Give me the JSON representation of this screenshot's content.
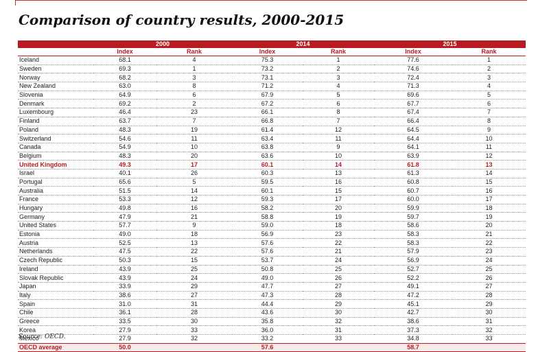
{
  "title": "Comparison of country results, 2000-2015",
  "years": [
    "2000",
    "2014",
    "2015"
  ],
  "col_index": "Index",
  "col_rank": "Rank",
  "highlight_country": "United Kingdom",
  "rows": [
    [
      "Iceland",
      "68.1",
      "4",
      "75.3",
      "1",
      "77.6",
      "1"
    ],
    [
      "Sweden",
      "69.3",
      "1",
      "73.2",
      "2",
      "74.6",
      "2"
    ],
    [
      "Norway",
      "68.2",
      "3",
      "73.1",
      "3",
      "72.4",
      "3"
    ],
    [
      "New Zealand",
      "63.0",
      "8",
      "71.2",
      "4",
      "71.3",
      "4"
    ],
    [
      "Slovenia",
      "64.9",
      "6",
      "67.9",
      "5",
      "69.6",
      "5"
    ],
    [
      "Denmark",
      "69.2",
      "2",
      "67.2",
      "6",
      "67.7",
      "6"
    ],
    [
      "Luxembourg",
      "46.4",
      "23",
      "66.1",
      "8",
      "67.4",
      "7"
    ],
    [
      "Finland",
      "63.7",
      "7",
      "66.8",
      "7",
      "66.4",
      "8"
    ],
    [
      "Poland",
      "48.3",
      "19",
      "61.4",
      "12",
      "64.5",
      "9"
    ],
    [
      "Switzerland",
      "54.6",
      "11",
      "63.4",
      "11",
      "64.4",
      "10"
    ],
    [
      "Canada",
      "54.9",
      "10",
      "63.8",
      "9",
      "64.1",
      "11"
    ],
    [
      "Belgium",
      "48.3",
      "20",
      "63.6",
      "10",
      "63.9",
      "12"
    ],
    [
      "United Kingdom",
      "49.3",
      "17",
      "60.1",
      "14",
      "61.8",
      "13"
    ],
    [
      "Israel",
      "40.1",
      "26",
      "60.3",
      "13",
      "61.3",
      "14"
    ],
    [
      "Portugal",
      "65.6",
      "5",
      "59.5",
      "16",
      "60.8",
      "15"
    ],
    [
      "Australia",
      "51.5",
      "14",
      "60.1",
      "15",
      "60.7",
      "16"
    ],
    [
      "France",
      "53.3",
      "12",
      "59.3",
      "17",
      "60.0",
      "17"
    ],
    [
      "Hungary",
      "49.8",
      "16",
      "58.2",
      "20",
      "59.9",
      "18"
    ],
    [
      "Germany",
      "47.9",
      "21",
      "58.8",
      "19",
      "59.7",
      "19"
    ],
    [
      "United States",
      "57.7",
      "9",
      "59.0",
      "18",
      "58.6",
      "20"
    ],
    [
      "Estonia",
      "49.0",
      "18",
      "56.9",
      "23",
      "58.3",
      "21"
    ],
    [
      "Austria",
      "52.5",
      "13",
      "57.6",
      "22",
      "58.3",
      "22"
    ],
    [
      "Netherlands",
      "47.5",
      "22",
      "57.6",
      "21",
      "57.9",
      "23"
    ],
    [
      "Czech Republic",
      "50.3",
      "15",
      "53.7",
      "24",
      "56.9",
      "24"
    ],
    [
      "Ireland",
      "43.9",
      "25",
      "50.8",
      "25",
      "52.7",
      "25"
    ],
    [
      "Slovak Republic",
      "43.9",
      "24",
      "49.0",
      "26",
      "52.2",
      "26"
    ],
    [
      "Japan",
      "33.9",
      "29",
      "47.7",
      "27",
      "49.1",
      "27"
    ],
    [
      "Italy",
      "38.6",
      "27",
      "47.3",
      "28",
      "47.2",
      "28"
    ],
    [
      "Spain",
      "31.0",
      "31",
      "44.4",
      "29",
      "45.1",
      "29"
    ],
    [
      "Chile",
      "36.1",
      "28",
      "43.6",
      "30",
      "42.7",
      "30"
    ],
    [
      "Greece",
      "33.5",
      "30",
      "35.8",
      "32",
      "38.6",
      "31"
    ],
    [
      "Korea",
      "27.9",
      "33",
      "36.0",
      "31",
      "37.3",
      "32"
    ],
    [
      "Mexico",
      "27.9",
      "32",
      "33.2",
      "33",
      "34.8",
      "33"
    ]
  ],
  "average": [
    "OECD average",
    "50.0",
    "",
    "57.6",
    "",
    "58.7",
    ""
  ],
  "source": "Source: OECD."
}
